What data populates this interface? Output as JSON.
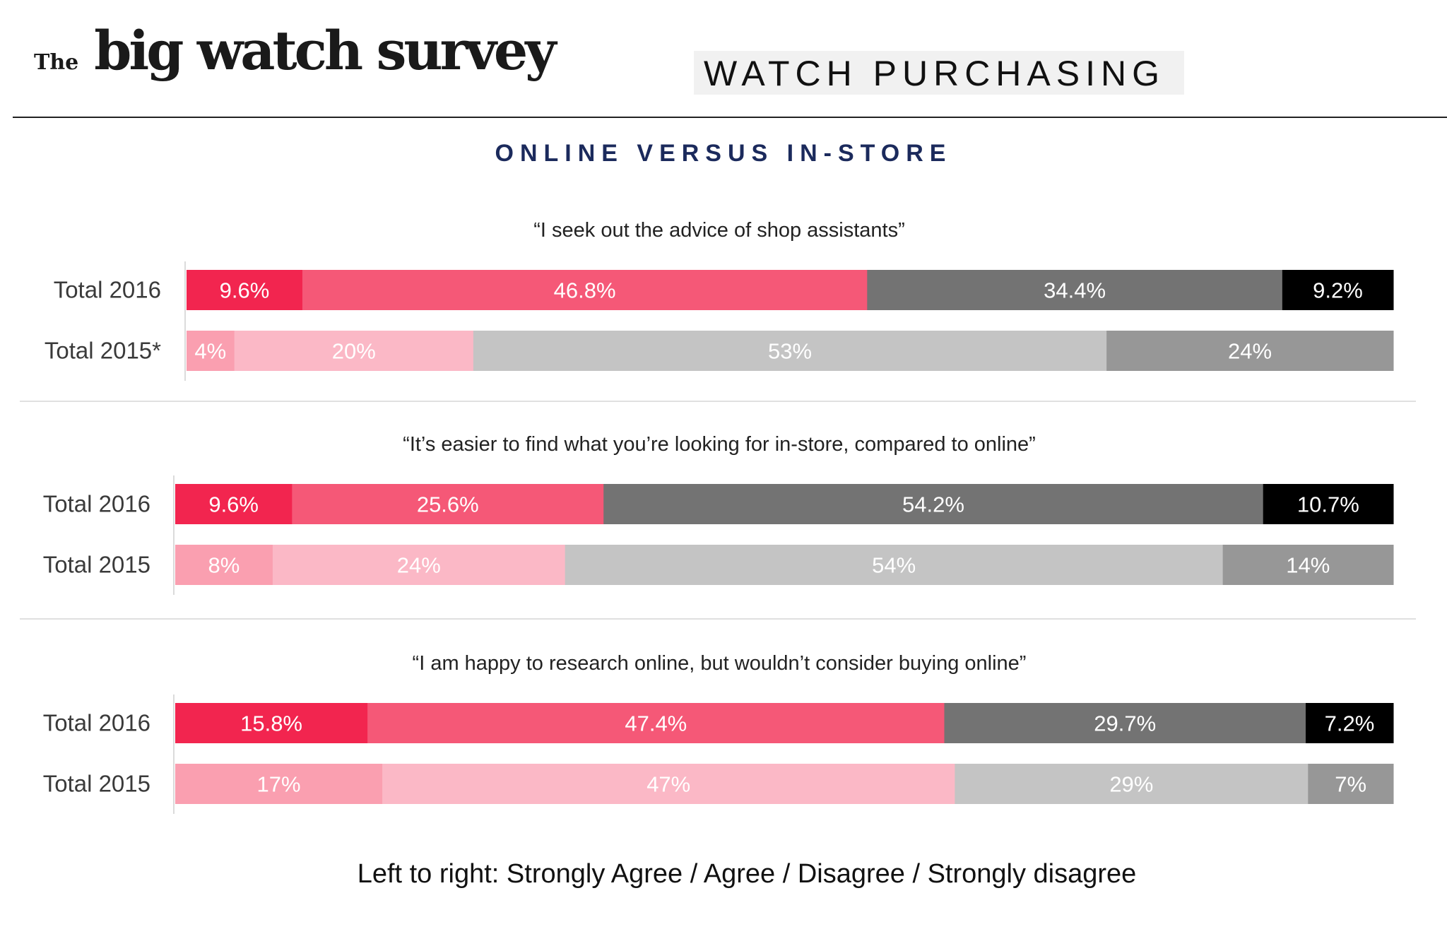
{
  "header": {
    "logo_the": "The",
    "logo_main": "big watch survey",
    "section_title": "WATCH PURCHASING"
  },
  "subtitle": "ONLINE VERSUS IN-STORE",
  "footer": "Left to right: Strongly Agree / Agree / Disagree / Strongly disagree",
  "colors": {
    "2016": [
      "#f2254f",
      "#f55877",
      "#737373",
      "#000000"
    ],
    "2015": [
      "#fa9fb0",
      "#fbb8c6",
      "#c4c4c4",
      "#979797"
    ]
  },
  "chart_data": {
    "type": "bar",
    "orientation": "horizontal",
    "stacked": "100%",
    "legend": [
      "Strongly Agree",
      "Agree",
      "Disagree",
      "Strongly disagree"
    ],
    "groups": [
      {
        "statement": "“I seek out the advice of shop assistants”",
        "rows": [
          {
            "label": "Total 2016",
            "year": "2016",
            "values": [
              9.6,
              46.8,
              34.4,
              9.2
            ],
            "value_labels": [
              "9.6%",
              "46.8%",
              "34.4%",
              "9.2%"
            ]
          },
          {
            "label": "Total 2015*",
            "year": "2015",
            "values": [
              4,
              20,
              53,
              24
            ],
            "value_labels": [
              "4%",
              "20%",
              "53%",
              "24%"
            ]
          }
        ]
      },
      {
        "statement": "“It’s easier to find what you’re looking for in-store, compared to online”",
        "rows": [
          {
            "label": "Total 2016",
            "year": "2016",
            "values": [
              9.6,
              25.6,
              54.2,
              10.7
            ],
            "value_labels": [
              "9.6%",
              "25.6%",
              "54.2%",
              "10.7%"
            ]
          },
          {
            "label": "Total 2015",
            "year": "2015",
            "values": [
              8,
              24,
              54,
              14
            ],
            "value_labels": [
              "8%",
              "24%",
              "54%",
              "14%"
            ]
          }
        ]
      },
      {
        "statement": "“I am happy to research online, but wouldn’t consider buying online”",
        "rows": [
          {
            "label": "Total 2016",
            "year": "2016",
            "values": [
              15.8,
              47.4,
              29.7,
              7.2
            ],
            "value_labels": [
              "15.8%",
              "47.4%",
              "29.7%",
              "7.2%"
            ]
          },
          {
            "label": "Total 2015",
            "year": "2015",
            "values": [
              17,
              47,
              29,
              7
            ],
            "value_labels": [
              "17%",
              "47%",
              "29%",
              "7%"
            ]
          }
        ]
      }
    ]
  }
}
